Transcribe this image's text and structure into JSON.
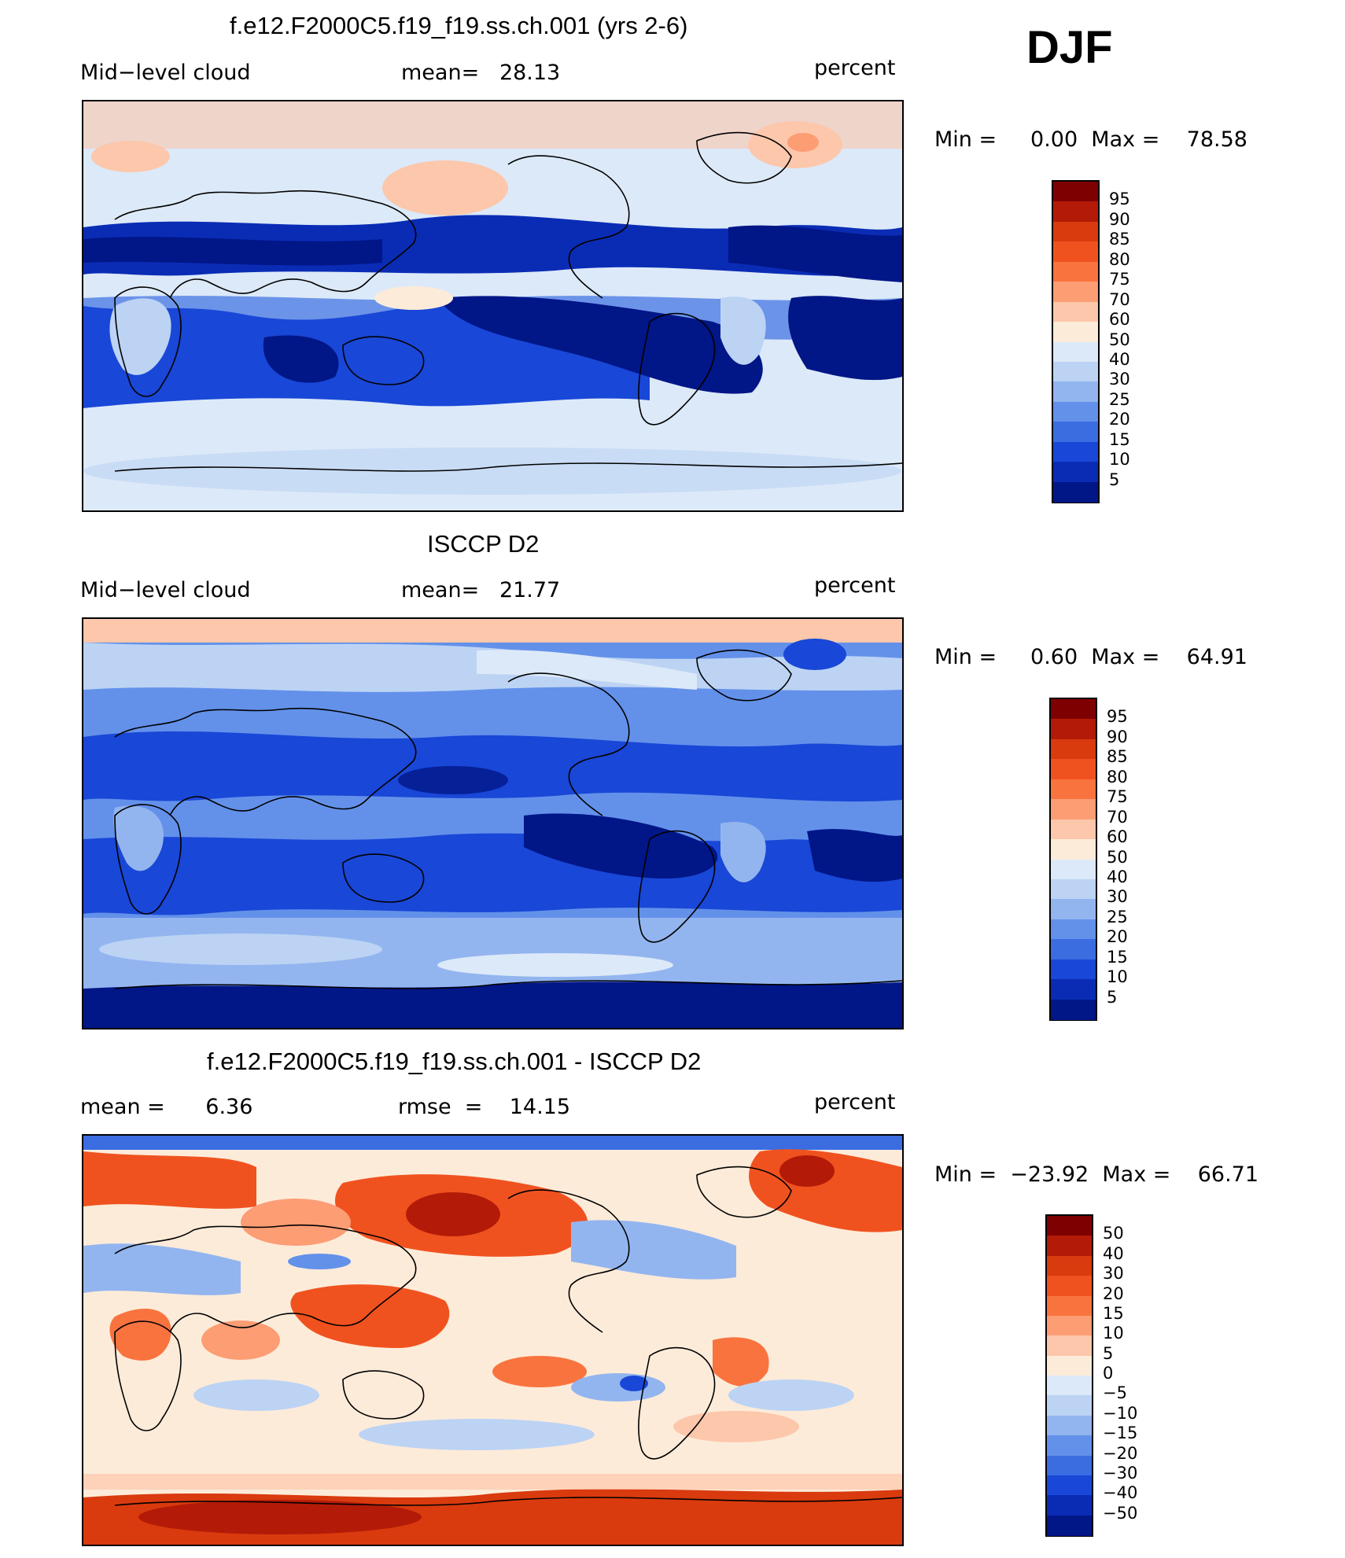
{
  "season": "DJF",
  "panels": [
    {
      "title": "f.e12.F2000C5.f19_f19.ss.ch.001 (yrs 2-6)",
      "left_label": "Mid−level cloud",
      "center_label": "mean=   28.13",
      "right_label": "percent",
      "minmax": "Min =     0.00  Max =    78.58",
      "colorbar_labels": [
        "95",
        "90",
        "85",
        "80",
        "75",
        "70",
        "60",
        "50",
        "40",
        "30",
        "25",
        "20",
        "15",
        "10",
        "5"
      ]
    },
    {
      "title": "ISCCP D2",
      "left_label": "Mid−level cloud",
      "center_label": "mean=   21.77",
      "right_label": "percent",
      "minmax": "Min =     0.60  Max =    64.91",
      "colorbar_labels": [
        "95",
        "90",
        "85",
        "80",
        "75",
        "70",
        "60",
        "50",
        "40",
        "30",
        "25",
        "20",
        "15",
        "10",
        "5"
      ]
    },
    {
      "title": "f.e12.F2000C5.f19_f19.ss.ch.001 - ISCCP D2",
      "left_label": "mean =      6.36",
      "center_label": "rmse  =    14.15",
      "right_label": "percent",
      "minmax": "Min =  −23.92  Max =    66.71",
      "colorbar_labels": [
        "50",
        "40",
        "30",
        "20",
        "15",
        "10",
        "5",
        "0",
        "−5",
        "−10",
        "−15",
        "−20",
        "−30",
        "−40",
        "−50"
      ]
    }
  ],
  "colors": {
    "scale": [
      "#7f0000",
      "#b31b08",
      "#d93a0e",
      "#f0521f",
      "#f9733f",
      "#fc9d74",
      "#fcc7ab",
      "#fdebd9",
      "#dce9f8",
      "#bcd3f4",
      "#93b5ef",
      "#6391ea",
      "#3b6de1",
      "#1947d7",
      "#0a2cb5",
      "#011687",
      "#00107a"
    ]
  }
}
